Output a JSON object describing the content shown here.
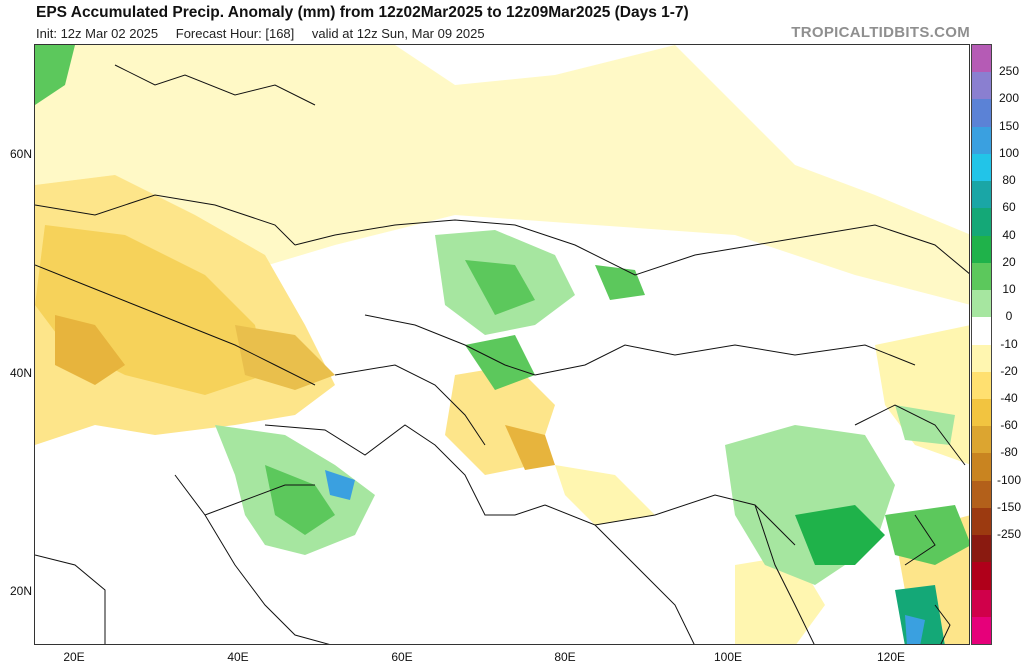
{
  "header": {
    "title": "EPS Accumulated Precip. Anomaly (mm) from 12z02Mar2025 to 12z09Mar2025 (Days 1-7)",
    "init": "Init: 12z Mar 02 2025",
    "forecast_hour": "Forecast Hour: [168]",
    "valid": "valid at 12z Sun, Mar 09 2025",
    "brand": "TROPICALTIDBITS.COM"
  },
  "map": {
    "lat_labels": [
      "60N",
      "40N",
      "20N"
    ],
    "lon_labels": [
      "20E",
      "40E",
      "60E",
      "80E",
      "100E",
      "120E"
    ]
  },
  "colorbar": {
    "labels": [
      "250",
      "200",
      "150",
      "100",
      "80",
      "60",
      "40",
      "20",
      "10",
      "0",
      "-10",
      "-20",
      "-40",
      "-60",
      "-80",
      "-100",
      "-150",
      "-250"
    ],
    "colors": [
      "#b55bb5",
      "#8a7fd0",
      "#5b82d6",
      "#3aa0e0",
      "#22c4e8",
      "#1aa6a6",
      "#14a877",
      "#1fb24a",
      "#5cc85c",
      "#a6e6a0",
      "#ffffff",
      "#fff6b0",
      "#ffe070",
      "#f2c440",
      "#dca530",
      "#c98420",
      "#b3601a",
      "#9c3a10",
      "#8a1a10",
      "#b0001a",
      "#d0004a",
      "#e6007a"
    ]
  }
}
